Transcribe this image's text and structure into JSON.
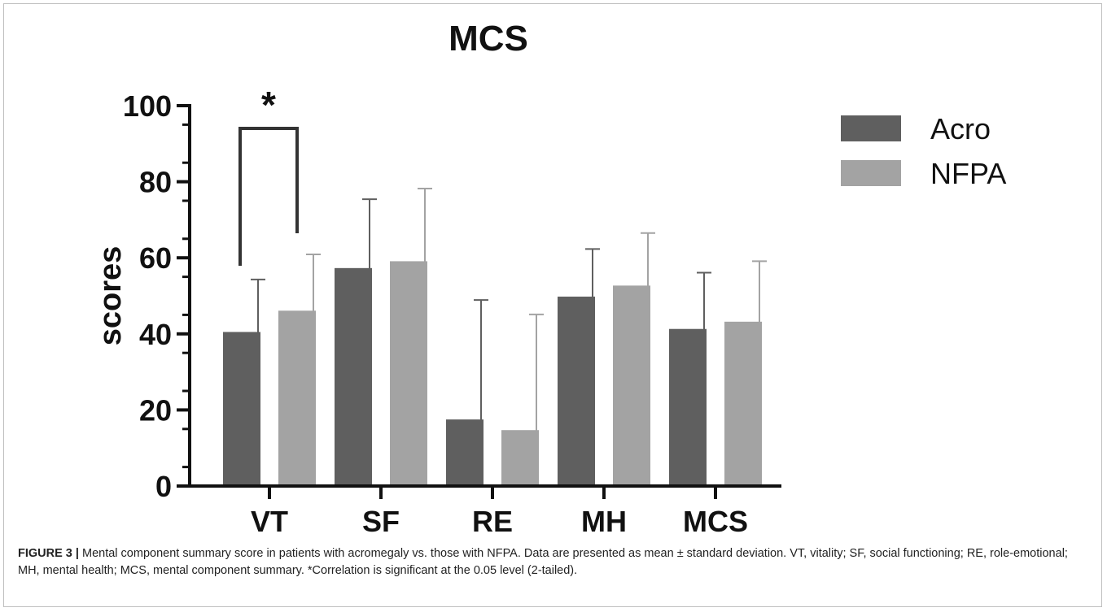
{
  "chart_data": {
    "type": "bar",
    "title": "MCS",
    "xlabel": "",
    "ylabel": "scores",
    "ylim": [
      0,
      100
    ],
    "yticks": [
      0,
      20,
      40,
      60,
      80,
      100
    ],
    "categories": [
      "VT",
      "SF",
      "RE",
      "MH",
      "MCS"
    ],
    "series": [
      {
        "name": "Acro",
        "color": "#5f5f5f",
        "values": [
          40.5,
          57.3,
          17.5,
          49.8,
          41.3
        ],
        "sd": [
          13.8,
          18.1,
          31.4,
          12.5,
          14.8
        ]
      },
      {
        "name": "NFPA",
        "color": "#a3a3a3",
        "values": [
          46.1,
          59.1,
          14.7,
          52.7,
          43.2
        ],
        "sd": [
          14.8,
          19.1,
          30.4,
          13.8,
          15.9
        ]
      }
    ],
    "annotations": [
      {
        "text": "*",
        "between": [
          "VT",
          "Acro",
          "NFPA"
        ],
        "meaning": "significant"
      }
    ],
    "legend_position": "top-right",
    "grid": false
  },
  "caption": {
    "label": "FIGURE 3 |",
    "text": " Mental component summary score in patients with acromegaly vs. those with NFPA. Data are presented as mean ± standard deviation. VT, vitality; SF, social functioning; RE, role-emotional; MH, mental health; MCS, mental component summary. *Correlation is significant at the 0.05 level (2-tailed)."
  }
}
